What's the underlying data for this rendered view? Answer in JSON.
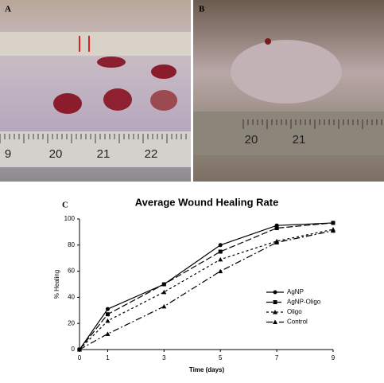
{
  "photos": {
    "a": {
      "label": "A",
      "ruler_labels": [
        "9",
        "20",
        "21",
        "22"
      ]
    },
    "b": {
      "label": "B",
      "ruler_labels": [
        "20",
        "21"
      ]
    }
  },
  "chart_data": {
    "type": "line",
    "panel_label": "C",
    "title": "Average Wound Healing Rate",
    "x_label": "Time (days)",
    "y_label": "% Healing",
    "x": [
      0,
      1,
      3,
      5,
      7,
      9
    ],
    "xlim": [
      0,
      9
    ],
    "xticks": [
      0,
      1,
      3,
      5,
      7,
      9
    ],
    "ylim": [
      0,
      100
    ],
    "yticks": [
      0,
      20,
      40,
      60,
      80,
      100
    ],
    "legend": "right",
    "series": [
      {
        "name": "AgNP",
        "color": "#000000",
        "marker": "circle",
        "dash": "solid",
        "values": [
          0,
          31,
          50,
          80,
          95,
          97
        ]
      },
      {
        "name": "AgNP-Oligo",
        "color": "#000000",
        "marker": "square",
        "dash": "long",
        "values": [
          0,
          27,
          50,
          75,
          93,
          97
        ]
      },
      {
        "name": "Oligo",
        "color": "#000000",
        "marker": "triangle",
        "dash": "short",
        "values": [
          0,
          22,
          44,
          69,
          83,
          92
        ]
      },
      {
        "name": "Control",
        "color": "#000000",
        "marker": "triangle",
        "dash": "dashdot",
        "values": [
          0,
          12,
          33,
          60,
          82,
          91
        ]
      }
    ]
  }
}
